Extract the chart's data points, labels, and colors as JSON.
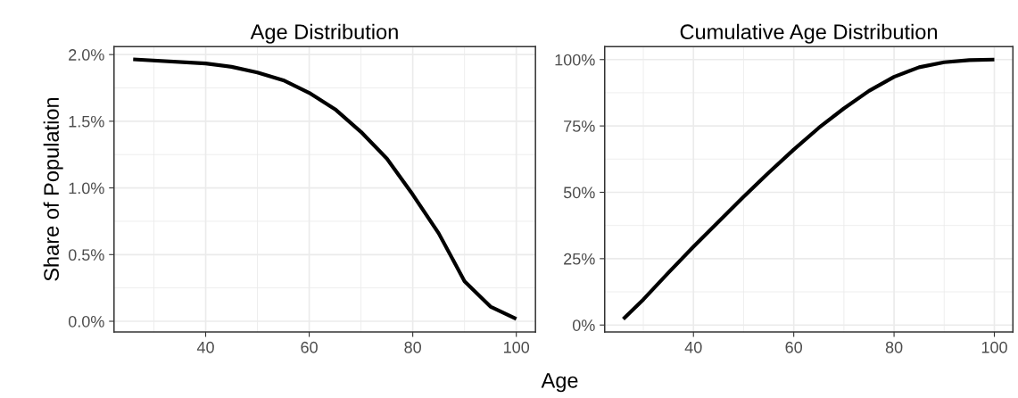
{
  "chart_data": [
    {
      "type": "line",
      "title": "Age Distribution",
      "xlabel": "Age",
      "ylabel": "Share of Population",
      "x": [
        26,
        40,
        45,
        50,
        55,
        60,
        65,
        70,
        75,
        80,
        85,
        90,
        95,
        100
      ],
      "series": [
        {
          "color": "#000000",
          "values": [
            1.964,
            1.933,
            1.908,
            1.866,
            1.807,
            1.713,
            1.59,
            1.42,
            1.22,
            0.95,
            0.66,
            0.3,
            0.11,
            0.018
          ]
        }
      ],
      "xlim": [
        22.3,
        103.7
      ],
      "xticks": [
        40,
        60,
        80,
        100
      ],
      "ylim": [
        -0.08,
        2.06
      ],
      "yticks": [
        {
          "value": 0,
          "label": "0.0%"
        },
        {
          "value": 0.5,
          "label": "0.5%"
        },
        {
          "value": 1.0,
          "label": "1.0%"
        },
        {
          "value": 1.5,
          "label": "1.5%"
        },
        {
          "value": 2.0,
          "label": "2.0%"
        }
      ],
      "grid": true,
      "line_style": "solid"
    },
    {
      "type": "line",
      "title": "Cumulative Age Distribution",
      "x": [
        26,
        30,
        35,
        40,
        45,
        50,
        55,
        60,
        65,
        70,
        75,
        80,
        85,
        90,
        95,
        100
      ],
      "series": [
        {
          "color": "#000000",
          "values": [
            2.3,
            9.6,
            19.7,
            29.5,
            38.9,
            48.3,
            57.4,
            66.1,
            74.3,
            81.6,
            88.2,
            93.5,
            97.1,
            99.0,
            99.8,
            100
          ]
        }
      ],
      "xlim": [
        22.3,
        103.7
      ],
      "xticks": [
        40,
        60,
        80,
        100
      ],
      "ylim": [
        -2.6,
        104.9
      ],
      "yticks": [
        {
          "value": 0,
          "label": "0%"
        },
        {
          "value": 25,
          "label": "25%"
        },
        {
          "value": 50,
          "label": "50%"
        },
        {
          "value": 75,
          "label": "75%"
        },
        {
          "value": 100,
          "label": "100%"
        }
      ],
      "grid": true,
      "line_style": "solid"
    }
  ]
}
